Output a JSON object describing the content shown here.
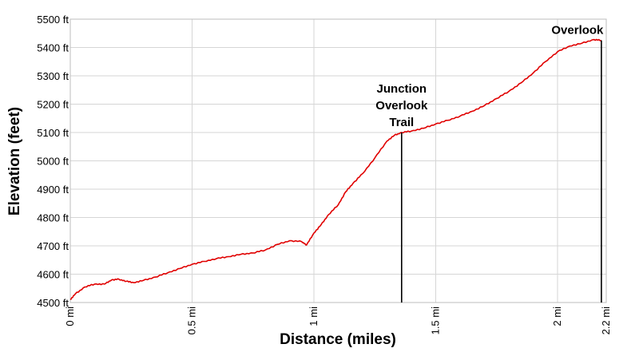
{
  "chart_data": {
    "type": "line",
    "title": "",
    "xlabel": "Distance (miles)",
    "ylabel": "Elevation (feet)",
    "xlim": [
      0,
      2.2
    ],
    "ylim": [
      4500,
      5500
    ],
    "grid": true,
    "legend": "none",
    "line_color": "#e00000",
    "marker_color": "#000000",
    "x_ticks": [
      {
        "value": 0,
        "label": "0 mi"
      },
      {
        "value": 0.5,
        "label": "0.5 mi"
      },
      {
        "value": 1,
        "label": "1 mi"
      },
      {
        "value": 1.5,
        "label": "1.5 mi"
      },
      {
        "value": 2,
        "label": "2 mi"
      },
      {
        "value": 2.2,
        "label": "2.2 mi"
      }
    ],
    "y_ticks": [
      {
        "value": 4500,
        "label": "4500 ft"
      },
      {
        "value": 4600,
        "label": "4600 ft"
      },
      {
        "value": 4700,
        "label": "4700 ft"
      },
      {
        "value": 4800,
        "label": "4800 ft"
      },
      {
        "value": 4900,
        "label": "4900 ft"
      },
      {
        "value": 5000,
        "label": "5000 ft"
      },
      {
        "value": 5100,
        "label": "5100 ft"
      },
      {
        "value": 5200,
        "label": "5200 ft"
      },
      {
        "value": 5300,
        "label": "5300 ft"
      },
      {
        "value": 5400,
        "label": "5400 ft"
      },
      {
        "value": 5500,
        "label": "5500 ft"
      }
    ],
    "series": [
      {
        "x": [
          0,
          0.02,
          0.06,
          0.1,
          0.14,
          0.17,
          0.2,
          0.23,
          0.26,
          0.3,
          0.35,
          0.4,
          0.45,
          0.5,
          0.55,
          0.6,
          0.65,
          0.7,
          0.75,
          0.8,
          0.85,
          0.9,
          0.95,
          0.97,
          1.0,
          1.03,
          1.06,
          1.1,
          1.13,
          1.16,
          1.2,
          1.25,
          1.3,
          1.33,
          1.36,
          1.4,
          1.45,
          1.5,
          1.55,
          1.6,
          1.65,
          1.7,
          1.75,
          1.8,
          1.85,
          1.9,
          1.95,
          2.0,
          2.05,
          2.1,
          2.15,
          2.18
        ],
        "y": [
          4510,
          4530,
          4555,
          4565,
          4565,
          4580,
          4582,
          4575,
          4570,
          4578,
          4590,
          4605,
          4620,
          4635,
          4645,
          4655,
          4662,
          4670,
          4675,
          4685,
          4705,
          4718,
          4715,
          4703,
          4745,
          4775,
          4810,
          4845,
          4890,
          4920,
          4955,
          5010,
          5070,
          5090,
          5100,
          5105,
          5115,
          5130,
          5143,
          5158,
          5175,
          5195,
          5220,
          5245,
          5275,
          5310,
          5350,
          5385,
          5405,
          5415,
          5428,
          5425
        ]
      }
    ],
    "annotations": [
      {
        "x": 1.36,
        "y": 5100,
        "label_lines": [
          "Junction",
          "Overlook",
          "Trail"
        ]
      },
      {
        "x": 2.18,
        "y": 5425,
        "label_lines": [
          "Overlook"
        ]
      }
    ]
  }
}
